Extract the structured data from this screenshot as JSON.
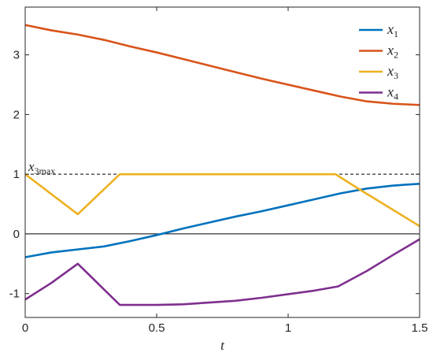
{
  "chart_data": {
    "type": "line",
    "title": "",
    "xlabel": "t",
    "ylabel": "",
    "xlim": [
      0,
      1.5
    ],
    "ylim": [
      -1.4,
      3.8
    ],
    "grid": false,
    "legend_position": "top-right",
    "xticks": [
      0,
      0.5,
      1,
      1.5
    ],
    "xtick_labels": [
      "0",
      "0.5",
      "1",
      "1.5"
    ],
    "yticks": [
      -1,
      0,
      1,
      2,
      3
    ],
    "ytick_labels": [
      "-1",
      "0",
      "1",
      "2",
      "3"
    ],
    "reference_lines": [
      {
        "y": 0,
        "style": "solid",
        "color": "#000000"
      },
      {
        "y": 1,
        "style": "dashed",
        "color": "#000000",
        "label_main": "x",
        "label_sub": "3max"
      }
    ],
    "series": [
      {
        "label_main": "x",
        "label_sub": "1",
        "color": "#0072BD",
        "x": [
          0,
          0.1,
          0.2,
          0.3,
          0.4,
          0.5,
          0.6,
          0.7,
          0.8,
          0.9,
          1.0,
          1.1,
          1.2,
          1.3,
          1.4,
          1.5
        ],
        "y": [
          -0.39,
          -0.31,
          -0.26,
          -0.21,
          -0.12,
          -0.02,
          0.09,
          0.19,
          0.29,
          0.38,
          0.48,
          0.58,
          0.68,
          0.76,
          0.81,
          0.84
        ]
      },
      {
        "label_main": "x",
        "label_sub": "2",
        "color": "#D95319",
        "x": [
          0,
          0.1,
          0.2,
          0.3,
          0.4,
          0.5,
          0.6,
          0.7,
          0.8,
          0.9,
          1.0,
          1.1,
          1.2,
          1.3,
          1.4,
          1.5
        ],
        "y": [
          3.5,
          3.41,
          3.34,
          3.25,
          3.14,
          3.04,
          2.93,
          2.82,
          2.71,
          2.6,
          2.5,
          2.4,
          2.3,
          2.22,
          2.18,
          2.16
        ]
      },
      {
        "label_main": "x",
        "label_sub": "3",
        "color": "#EDB120",
        "x": [
          0,
          0.2,
          0.36,
          0.5,
          0.8,
          1.0,
          1.18,
          1.27,
          1.5
        ],
        "y": [
          1.0,
          0.33,
          1.0,
          1.0,
          1.0,
          1.0,
          1.0,
          0.75,
          0.13
        ]
      },
      {
        "label_main": "x",
        "label_sub": "4",
        "color": "#7E2F8E",
        "x": [
          0,
          0.1,
          0.2,
          0.36,
          0.5,
          0.6,
          0.7,
          0.8,
          0.9,
          1.0,
          1.1,
          1.19,
          1.3,
          1.4,
          1.5
        ],
        "y": [
          -1.1,
          -0.82,
          -0.5,
          -1.19,
          -1.19,
          -1.18,
          -1.15,
          -1.12,
          -1.07,
          -1.01,
          -0.95,
          -0.88,
          -0.62,
          -0.35,
          -0.09
        ]
      }
    ]
  }
}
